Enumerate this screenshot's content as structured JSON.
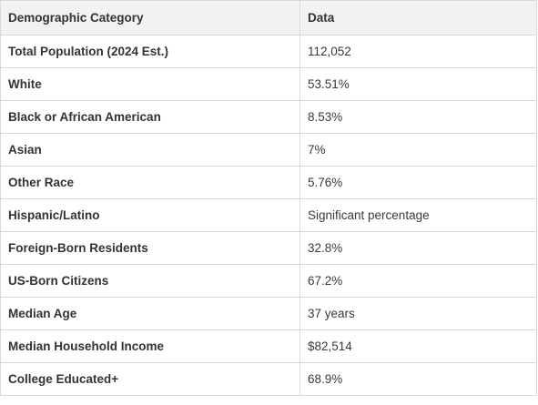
{
  "table": {
    "headers": [
      "Demographic Category",
      "Data"
    ],
    "rows": [
      {
        "category": "Total Population (2024 Est.)",
        "value": "112,052"
      },
      {
        "category": "White",
        "value": "53.51%"
      },
      {
        "category": "Black or African American",
        "value": "8.53%"
      },
      {
        "category": "Asian",
        "value": "7%"
      },
      {
        "category": "Other Race",
        "value": "5.76%"
      },
      {
        "category": "Hispanic/Latino",
        "value": "Significant percentage"
      },
      {
        "category": "Foreign-Born Residents",
        "value": "32.8%"
      },
      {
        "category": "US-Born Citizens",
        "value": "67.2%"
      },
      {
        "category": "Median Age",
        "value": "37 years"
      },
      {
        "category": "Median Household Income",
        "value": "$82,514"
      },
      {
        "category": "College Educated+",
        "value": "68.9%"
      }
    ]
  }
}
